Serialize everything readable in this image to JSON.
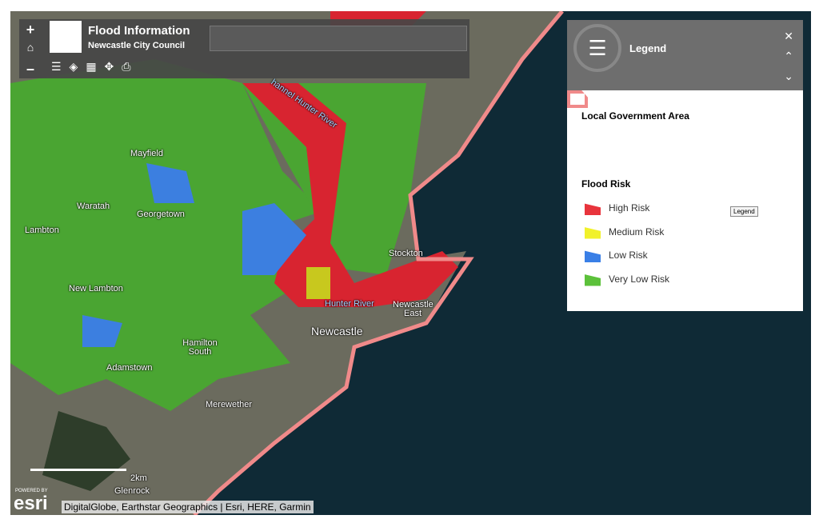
{
  "app": {
    "title": "Flood Information",
    "subtitle": "Newcastle City Council",
    "zoom_in": "+",
    "zoom_out": "–"
  },
  "legend_panel": {
    "title": "Legend",
    "tooltip": "Legend",
    "sections": [
      {
        "title": "Local Government Area",
        "items": []
      },
      {
        "title": "Flood Risk",
        "items": [
          {
            "label": "High Risk",
            "color": "#e8343c"
          },
          {
            "label": "Medium Risk",
            "color": "#f1f12a"
          },
          {
            "label": "Low Risk",
            "color": "#3a7fe6"
          },
          {
            "label": "Very Low Risk",
            "color": "#5cc13a"
          }
        ]
      }
    ]
  },
  "map": {
    "labels": [
      "Mayfield",
      "Waratah",
      "Georgetown",
      "Lambton",
      "New Lambton",
      "Hamilton South",
      "Adamstown",
      "Merewether",
      "Glenrock",
      "Newcastle",
      "Newcastle East",
      "Stockton",
      "Hunter River",
      "hannel Hunter River"
    ],
    "scale": "2km",
    "powered_by": "POWERED BY",
    "esri": "esri",
    "attribution": "DigitalGlobe, Earthstar Geographics | Esri, HERE, Garmin"
  }
}
